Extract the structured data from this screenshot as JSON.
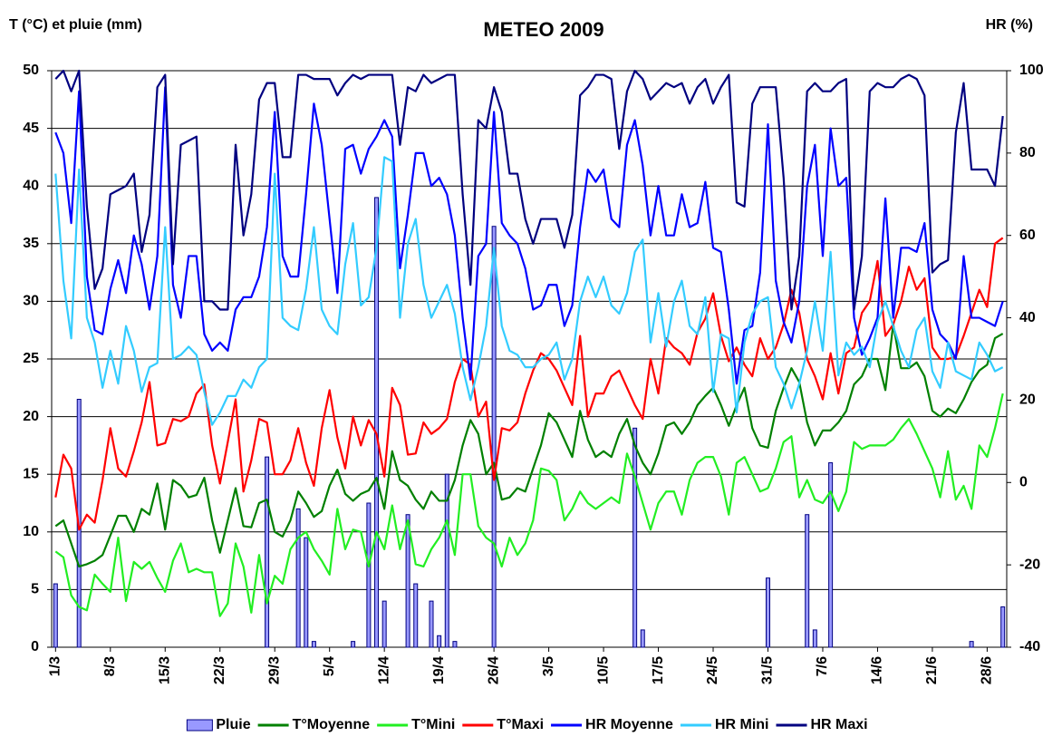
{
  "chart_data": {
    "type": "line",
    "title": "METEO 2009",
    "y_label": "T (°C) et pluie (mm)",
    "y2_label": "HR (%)",
    "categories": [
      "1/3",
      null,
      null,
      null,
      null,
      null,
      null,
      "8/3",
      null,
      null,
      null,
      null,
      null,
      null,
      "15/3",
      null,
      null,
      null,
      null,
      null,
      null,
      "22/3",
      null,
      null,
      null,
      null,
      null,
      null,
      "29/3",
      null,
      null,
      null,
      null,
      null,
      null,
      "5/4",
      null,
      null,
      null,
      null,
      null,
      null,
      "12/4",
      null,
      null,
      null,
      null,
      null,
      null,
      "19/4",
      null,
      null,
      null,
      null,
      null,
      null,
      "26/4",
      null,
      null,
      null,
      null,
      null,
      null,
      "3/5",
      null,
      null,
      null,
      null,
      null,
      null,
      "10/5",
      null,
      null,
      null,
      null,
      null,
      null,
      "17/5",
      null,
      null,
      null,
      null,
      null,
      null,
      "24/5",
      null,
      null,
      null,
      null,
      null,
      null,
      "31/5",
      null,
      null,
      null,
      null,
      null,
      null,
      "7/6",
      null,
      null,
      null,
      null,
      null,
      null,
      "14/6",
      null,
      null,
      null,
      null,
      null,
      null,
      "21/6",
      null,
      null,
      null,
      null,
      null,
      null,
      "28/6",
      null,
      null
    ],
    "ylim": [
      0,
      50
    ],
    "yticks": [
      0,
      5,
      10,
      15,
      20,
      25,
      30,
      35,
      40,
      45,
      50
    ],
    "y2lim": [
      -40,
      100
    ],
    "y2ticks": [
      -40,
      -20,
      0,
      20,
      40,
      60,
      80,
      100
    ],
    "grid": true,
    "legend": "bottom",
    "series": [
      {
        "name": "Pluie",
        "type": "bar",
        "color": "#9999ff",
        "values": [
          5.5,
          0,
          0,
          21.5,
          0,
          0,
          0,
          0,
          0,
          0,
          0,
          0,
          0,
          0,
          0,
          0,
          0,
          0,
          0,
          0,
          0,
          0,
          0,
          0,
          0,
          0,
          0,
          16.5,
          0,
          0,
          0,
          12,
          9.5,
          0.5,
          0,
          0,
          0,
          0,
          0.5,
          0,
          12.5,
          39,
          4,
          0,
          0,
          11.5,
          5.5,
          0,
          4,
          1,
          15,
          0.5,
          0,
          0,
          0,
          0,
          36.5,
          0,
          0,
          0,
          0,
          0,
          0,
          0,
          0,
          0,
          0,
          0,
          0,
          0,
          0,
          0,
          0,
          0,
          19,
          1.5,
          0,
          0,
          0,
          0,
          0,
          0,
          0,
          0,
          0,
          0,
          0,
          0,
          0,
          0,
          0,
          6,
          0,
          0,
          0,
          0,
          11.5,
          1.5,
          0,
          16,
          0,
          0,
          0,
          0,
          0,
          0,
          0,
          0,
          0,
          0,
          0,
          0,
          0,
          0,
          0,
          0,
          0,
          0.5,
          0,
          0,
          0,
          3.5
        ]
      },
      {
        "name": "T°Moyenne",
        "type": "line",
        "color": "#008000",
        "values": [
          10.5,
          11,
          9,
          7,
          7.2,
          7.5,
          8,
          9.7,
          11.4,
          11.4,
          10,
          12,
          11.5,
          14.2,
          10.2,
          14.5,
          14,
          13,
          13.2,
          14.7,
          11,
          8.2,
          11,
          13.8,
          10.5,
          10.4,
          12.5,
          12.8,
          10,
          9.6,
          11,
          13.5,
          12.5,
          11.3,
          11.8,
          14,
          15.4,
          13.3,
          12.7,
          13.3,
          13.6,
          14.7,
          12,
          17,
          14.5,
          14,
          12.8,
          12,
          13.5,
          12.7,
          12.7,
          14.5,
          17.5,
          19.7,
          18.5,
          15,
          16,
          12.8,
          13,
          13.8,
          13.5,
          15.5,
          17.5,
          20.3,
          19.5,
          18,
          16.5,
          20.5,
          18,
          16.5,
          17,
          16.5,
          18.5,
          19.8,
          17.5,
          16,
          15,
          16.8,
          19.2,
          19.5,
          18.5,
          19.5,
          21,
          21.8,
          22.5,
          21,
          19.2,
          21,
          22.5,
          19,
          17.5,
          17.3,
          20.5,
          22.5,
          24.2,
          23,
          19.5,
          17.5,
          18.8,
          18.8,
          19.5,
          20.5,
          22.8,
          23.5,
          25,
          25,
          22.3,
          28,
          24.2,
          24.2,
          24.7,
          23.5,
          20.5,
          20,
          20.7,
          20.3,
          21.5,
          23,
          24,
          24.5,
          26.8,
          27.2
        ]
      },
      {
        "name": "T°Mini",
        "type": "line",
        "color": "#22ee22",
        "values": [
          8.3,
          7.8,
          4.5,
          3.5,
          3.2,
          6.3,
          5.5,
          4.8,
          9.5,
          4,
          7.4,
          6.8,
          7.4,
          6,
          4.8,
          7.5,
          9,
          6.5,
          6.8,
          6.5,
          6.5,
          2.7,
          3.8,
          9,
          7,
          3,
          8,
          3.8,
          6.2,
          5.5,
          8.5,
          9.5,
          10,
          8.5,
          7.5,
          6.3,
          12,
          8.5,
          10.2,
          10,
          7,
          10,
          8.5,
          12.3,
          8.5,
          11,
          7.2,
          7,
          8.5,
          9.5,
          11,
          8,
          15,
          15,
          10.5,
          9.5,
          9,
          7,
          9.5,
          8,
          9,
          11,
          15.5,
          15.3,
          14.5,
          11,
          12,
          13.5,
          12.5,
          12,
          12.5,
          13,
          12.5,
          16.8,
          14.8,
          12.5,
          10.2,
          12.5,
          13.5,
          13.5,
          11.5,
          14.5,
          16,
          16.5,
          16.5,
          14.8,
          11.5,
          16,
          16.5,
          15,
          13.5,
          13.8,
          15.5,
          17.8,
          18.3,
          13,
          14.5,
          12.8,
          12.5,
          13.5,
          11.8,
          13.5,
          17.8,
          17.2,
          17.5,
          17.5,
          17.5,
          18,
          19,
          19.8,
          18.5,
          17,
          15.5,
          13,
          17,
          12.8,
          14,
          12,
          17.5,
          16.5,
          19,
          22
        ]
      },
      {
        "name": "T°Maxi",
        "type": "line",
        "color": "#ff0000",
        "values": [
          13,
          16.7,
          15.5,
          10.2,
          11.5,
          10.8,
          14.5,
          19,
          15.5,
          14.8,
          17,
          19.5,
          23,
          17.5,
          17.7,
          19.8,
          19.6,
          20,
          22,
          22.8,
          17.5,
          14.2,
          17.8,
          21.5,
          13.5,
          16.2,
          19.8,
          19.5,
          15,
          15,
          16.2,
          19,
          16,
          14,
          19,
          22.3,
          18.2,
          15.5,
          20,
          17.5,
          19.7,
          18.5,
          14.8,
          22.5,
          21,
          16.7,
          16.8,
          19.5,
          18.5,
          19,
          19.8,
          23,
          25,
          24.5,
          20,
          21.3,
          14.5,
          19,
          18.8,
          19.5,
          22,
          24,
          25.5,
          25,
          24,
          22.5,
          21,
          27,
          20,
          22,
          22,
          23.5,
          24,
          22.5,
          21,
          19.8,
          25,
          22,
          26.8,
          26,
          25.5,
          24.5,
          27.3,
          28.5,
          30.7,
          27,
          24.8,
          26,
          24.5,
          23.5,
          26.8,
          25,
          26,
          28,
          31,
          29,
          25,
          23.5,
          21.5,
          25.5,
          22,
          25.5,
          26,
          29,
          30,
          33.5,
          27,
          28,
          30,
          33,
          31,
          32,
          26,
          25,
          25,
          25.2,
          27,
          29,
          31,
          29.5,
          35,
          35.5
        ]
      },
      {
        "name": "HR Moyenne",
        "type": "line",
        "axis": "y2",
        "color": "#0000ff",
        "values": [
          85,
          80,
          63,
          95,
          50,
          37,
          36,
          47,
          54,
          46,
          60,
          53,
          42,
          55,
          96,
          48,
          40,
          55,
          55,
          36,
          32,
          34,
          32,
          42,
          45,
          45,
          50,
          62,
          90,
          55,
          50,
          50,
          70,
          92,
          82,
          64,
          46,
          81,
          82,
          75,
          81,
          84,
          88,
          84,
          52,
          65,
          80,
          80,
          72,
          74,
          70,
          60,
          40,
          25,
          55,
          58,
          90,
          63,
          60,
          58,
          52,
          42,
          43,
          48,
          48,
          38,
          43,
          62,
          76,
          73,
          76,
          64,
          62,
          82,
          88,
          77,
          60,
          72,
          60,
          60,
          70,
          62,
          63,
          73,
          57,
          56,
          42,
          24,
          37,
          38,
          51,
          87,
          49,
          39,
          34,
          44,
          72,
          82,
          55,
          86,
          72,
          74,
          40,
          31,
          35,
          40,
          69,
          40,
          57,
          57,
          56,
          63,
          42,
          36,
          34,
          30,
          55,
          40,
          40,
          39,
          38,
          44
        ]
      },
      {
        "name": "HR Mini",
        "type": "line",
        "axis": "y2",
        "color": "#33ccff",
        "values": [
          75,
          49,
          35,
          76,
          40,
          34,
          23,
          32,
          24,
          38,
          32,
          22,
          28,
          29,
          62,
          30,
          31,
          33,
          31,
          22,
          14,
          17,
          21,
          21,
          25,
          23,
          28,
          30,
          75,
          40,
          38,
          37,
          47,
          62,
          42,
          38,
          36,
          53,
          63,
          43,
          45,
          57,
          79,
          78,
          40,
          58,
          64,
          48,
          40,
          44,
          48,
          41,
          28,
          20,
          28,
          38,
          57,
          38,
          32,
          31,
          28,
          28,
          30,
          31,
          34,
          25,
          30,
          44,
          50,
          45,
          50,
          43,
          41,
          46,
          56,
          59,
          34,
          46,
          33,
          44,
          49,
          38,
          36,
          45,
          22,
          36,
          35,
          17,
          34,
          41,
          44,
          45,
          28,
          24,
          18,
          24,
          32,
          44,
          32,
          56,
          26,
          34,
          31,
          33,
          28,
          39,
          44,
          38,
          32,
          28,
          37,
          40,
          27,
          23,
          34,
          27,
          26,
          25,
          34,
          31,
          27,
          28
        ]
      },
      {
        "name": "HR Maxi",
        "type": "line",
        "axis": "y2",
        "color": "#000080",
        "values": [
          98,
          100,
          95,
          100,
          67,
          47,
          52,
          70,
          71,
          72,
          75,
          56,
          65,
          96,
          99,
          53,
          82,
          83,
          84,
          44,
          44,
          42,
          42,
          82,
          60,
          70,
          93,
          97,
          97,
          79,
          79,
          99,
          99,
          98,
          98,
          98,
          94,
          97,
          99,
          98,
          99,
          99,
          99,
          99,
          82,
          96,
          95,
          99,
          97,
          98,
          99,
          99,
          70,
          48,
          88,
          86,
          96,
          90,
          75,
          75,
          64,
          58,
          64,
          64,
          64,
          57,
          65,
          94,
          96,
          99,
          99,
          98,
          81,
          95,
          100,
          98,
          93,
          95,
          97,
          96,
          97,
          92,
          96,
          98,
          92,
          96,
          99,
          68,
          67,
          92,
          96,
          96,
          96,
          74,
          42,
          55,
          95,
          97,
          95,
          95,
          97,
          98,
          42,
          55,
          95,
          97,
          96,
          96,
          98,
          99,
          98,
          94,
          51,
          53,
          54,
          85,
          97,
          76,
          76,
          76,
          72,
          89
        ]
      }
    ]
  }
}
